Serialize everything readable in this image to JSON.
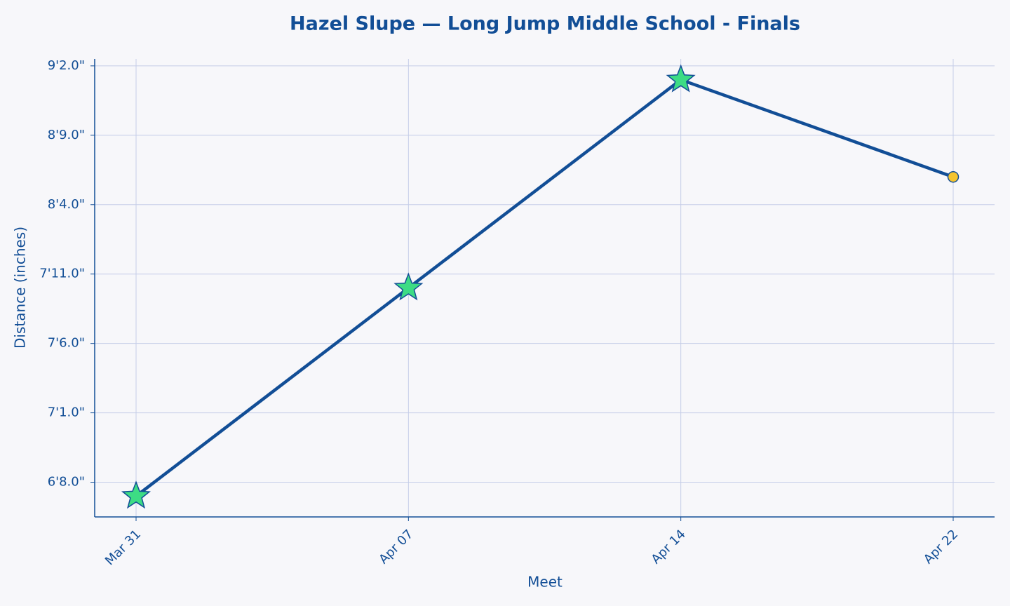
{
  "chart_data": {
    "type": "line",
    "title": "Hazel Slupe — Long Jump Middle School - Finals",
    "x_label": "Meet",
    "y_label": "Distance (inches)",
    "categories": [
      "Mar 31",
      "Apr 07",
      "Apr 14",
      "Apr 22"
    ],
    "series": [
      {
        "color": "#124e96",
        "values": [
          79,
          94,
          109,
          102
        ],
        "markers": [
          "star",
          "star",
          "star",
          "circle"
        ],
        "marker_colors": [
          "#3ddc84",
          "#3ddc84",
          "#3ddc84",
          "#f4c430"
        ]
      }
    ],
    "ylim": [
      77.5,
      110.5
    ],
    "yticks": [
      {
        "value": 80,
        "label": "6'8.0\""
      },
      {
        "value": 85,
        "label": "7'1.0\""
      },
      {
        "value": 90,
        "label": "7'6.0\""
      },
      {
        "value": 95,
        "label": "7'11.0\""
      },
      {
        "value": 100,
        "label": "8'4.0\""
      },
      {
        "value": 105,
        "label": "8'9.0\""
      },
      {
        "value": 110,
        "label": "9'2.0\""
      }
    ],
    "grid": true
  }
}
